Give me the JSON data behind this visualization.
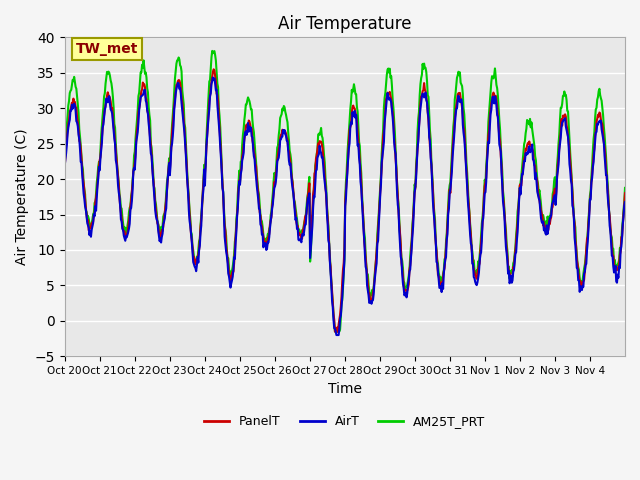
{
  "title": "Air Temperature",
  "ylabel": "Air Temperature (C)",
  "xlabel": "Time",
  "ylim": [
    -5,
    40
  ],
  "background_color": "#f5f5f5",
  "plot_bg_color": "#e8e8e8",
  "annotation_text": "TW_met",
  "annotation_color": "#8B0000",
  "annotation_bg": "#ffff99",
  "annotation_border": "#999900",
  "series": [
    {
      "label": "PanelT",
      "color": "#cc0000",
      "lw": 1.5
    },
    {
      "label": "AirT",
      "color": "#0000cc",
      "lw": 1.5
    },
    {
      "label": "AM25T_PRT",
      "color": "#00cc00",
      "lw": 1.5
    }
  ],
  "tick_labels": [
    "Oct 20",
    "Oct 21",
    "Oct 22",
    "Oct 23",
    "Oct 24",
    "Oct 25",
    "Oct 26",
    "Oct 27",
    "Oct 28",
    "Oct 29",
    "Oct 30",
    "Oct 31",
    "Nov 1",
    "Nov 2",
    "Nov 3",
    "Nov 4"
  ],
  "yticks": [
    -5,
    0,
    5,
    10,
    15,
    20,
    25,
    30,
    35,
    40
  ],
  "n_days": 16,
  "pts_per_day": 48,
  "daily_max": [
    31,
    32,
    33,
    34,
    35,
    28,
    27,
    28.5,
    30,
    32.5,
    33,
    32,
    32,
    25,
    29,
    29
  ],
  "daily_min": [
    13,
    12,
    12,
    8,
    6,
    11,
    12,
    2,
    3,
    4,
    5,
    6,
    6,
    13,
    5,
    7
  ]
}
